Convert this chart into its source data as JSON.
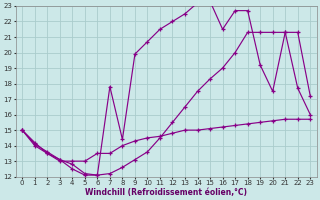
{
  "xlabel": "Windchill (Refroidissement éolien,°C)",
  "bg_color": "#cce8e8",
  "grid_color": "#aacccc",
  "line_color": "#880088",
  "xlim": [
    -0.5,
    23.5
  ],
  "ylim": [
    12,
    23
  ],
  "xticks": [
    0,
    1,
    2,
    3,
    4,
    5,
    6,
    7,
    8,
    9,
    10,
    11,
    12,
    13,
    14,
    15,
    16,
    17,
    18,
    19,
    20,
    21,
    22,
    23
  ],
  "yticks": [
    12,
    13,
    14,
    15,
    16,
    17,
    18,
    19,
    20,
    21,
    22,
    23
  ],
  "line1_x": [
    0,
    1,
    2,
    3,
    4,
    5,
    6,
    7,
    8,
    9,
    10,
    11,
    12,
    13,
    14,
    15,
    16,
    17,
    18,
    19,
    20,
    21,
    22,
    23
  ],
  "line1_y": [
    15.0,
    14.2,
    13.5,
    13.1,
    12.5,
    12.1,
    12.1,
    12.2,
    12.6,
    13.1,
    13.6,
    14.5,
    15.5,
    16.5,
    17.5,
    18.3,
    19.0,
    20.0,
    21.3,
    21.3,
    21.3,
    21.3,
    17.7,
    16.0
  ],
  "line2_x": [
    0,
    1,
    2,
    3,
    4,
    5,
    6,
    7,
    8,
    9,
    10,
    11,
    12,
    13,
    14,
    15,
    16,
    17,
    18,
    19,
    20,
    21,
    22,
    23
  ],
  "line2_y": [
    15.0,
    14.1,
    13.6,
    13.1,
    12.8,
    12.2,
    12.1,
    17.8,
    14.4,
    19.9,
    20.7,
    21.5,
    22.0,
    22.5,
    23.2,
    23.3,
    21.5,
    22.7,
    22.7,
    19.2,
    17.5,
    21.3,
    21.3,
    17.2
  ],
  "line3_x": [
    0,
    1,
    2,
    3,
    4,
    5,
    6,
    7,
    8,
    9,
    10,
    11,
    12,
    13,
    14,
    15,
    16,
    17,
    18,
    19,
    20,
    21,
    22,
    23
  ],
  "line3_y": [
    15.0,
    14.0,
    13.5,
    13.0,
    13.0,
    13.0,
    13.5,
    13.5,
    14.0,
    14.3,
    14.5,
    14.6,
    14.8,
    15.0,
    15.0,
    15.1,
    15.2,
    15.3,
    15.4,
    15.5,
    15.6,
    15.7,
    15.7,
    15.7
  ]
}
